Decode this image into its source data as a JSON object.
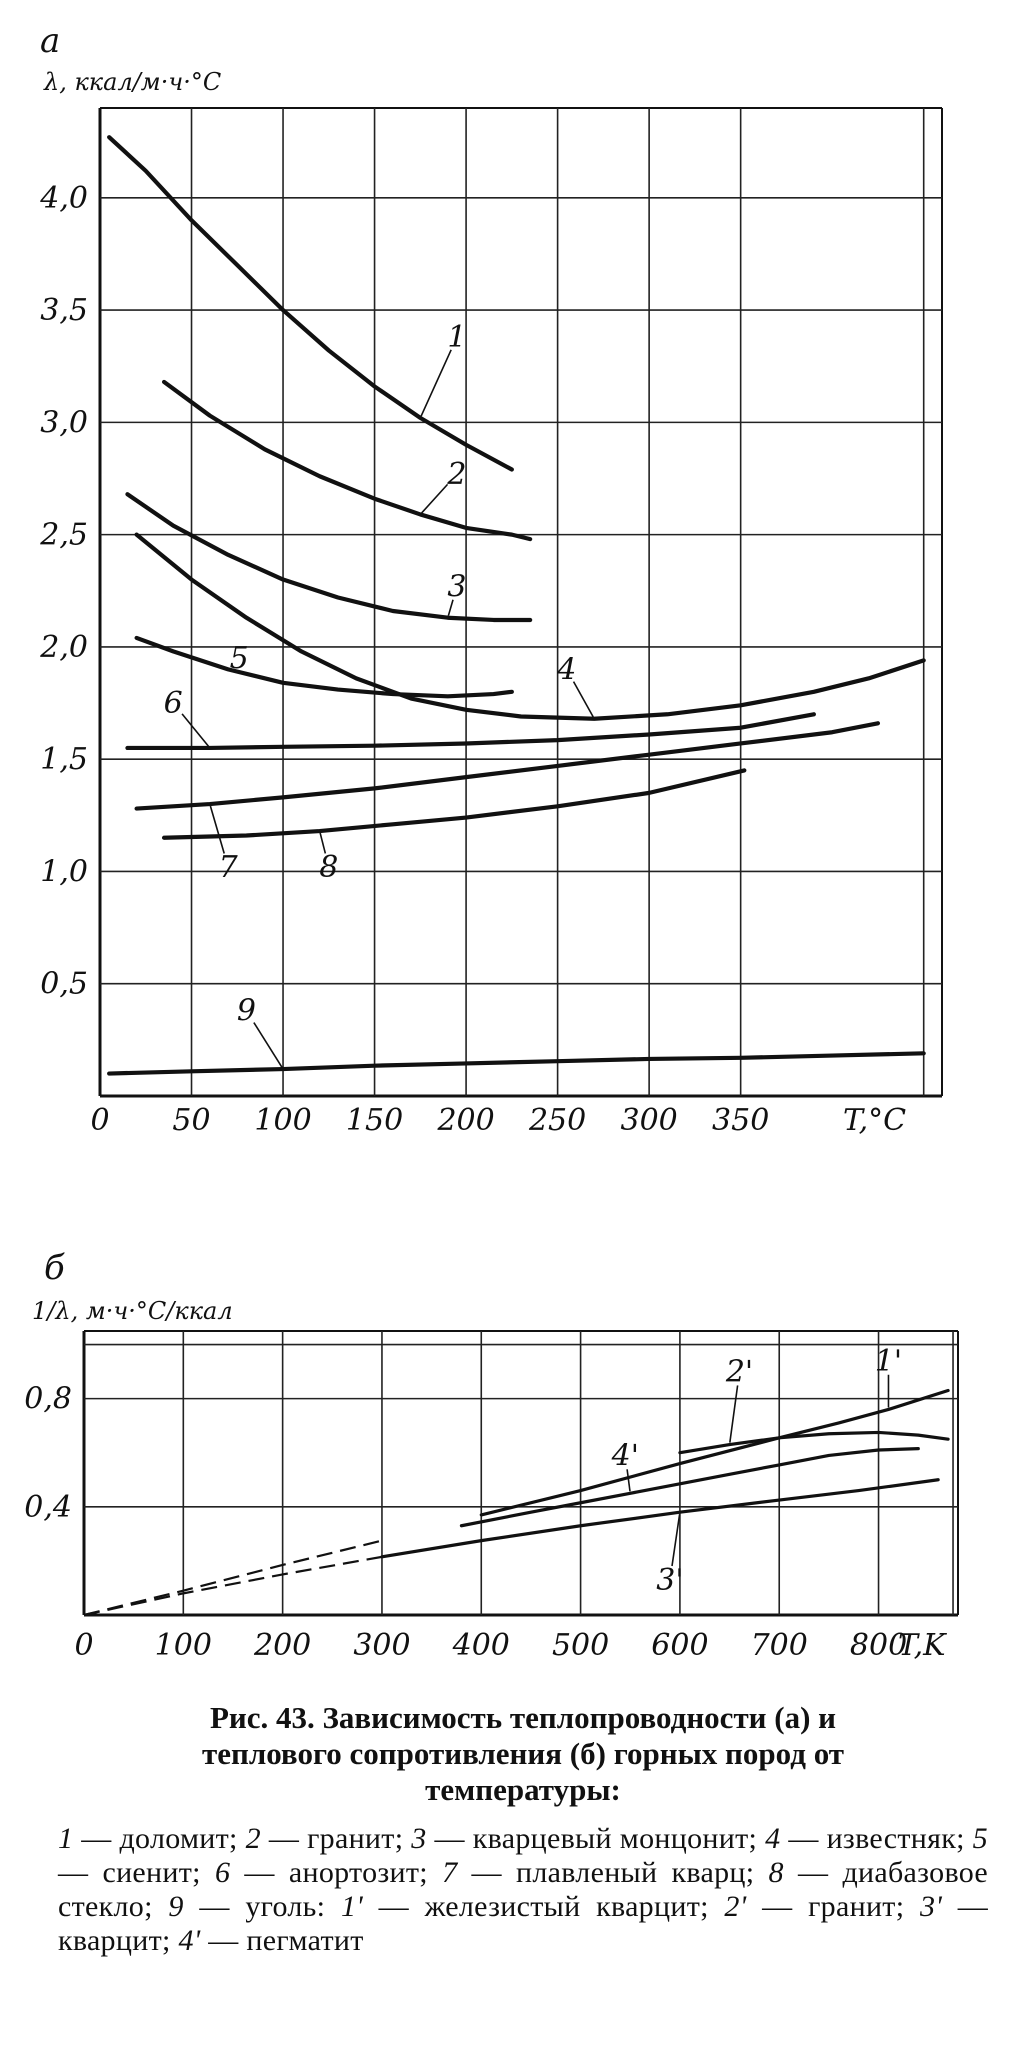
{
  "chart_data": [
    {
      "type": "line",
      "panel_letter": "a",
      "ylabel": "λ, ккал/м·ч·°C",
      "xlabel": "T,°C",
      "xlim": [
        0,
        460
      ],
      "ylim": [
        0,
        4.4
      ],
      "x_ticks": [
        "0",
        "50",
        "100",
        "150",
        "200",
        "250",
        "300",
        "350"
      ],
      "y_ticks": [
        {
          "v": 0.5,
          "label": "0,5"
        },
        {
          "v": 1.0,
          "label": "1,0"
        },
        {
          "v": 1.5,
          "label": "1,5"
        },
        {
          "v": 2.0,
          "label": "2,0"
        },
        {
          "v": 2.5,
          "label": "2,5"
        },
        {
          "v": 3.0,
          "label": "3,0"
        },
        {
          "v": 3.5,
          "label": "3,5"
        },
        {
          "v": 4.0,
          "label": "4,0"
        }
      ],
      "grid": true,
      "series": [
        {
          "name": "1",
          "points": [
            [
              5,
              4.27
            ],
            [
              25,
              4.12
            ],
            [
              50,
              3.9
            ],
            [
              75,
              3.7
            ],
            [
              100,
              3.5
            ],
            [
              125,
              3.32
            ],
            [
              150,
              3.16
            ],
            [
              175,
              3.02
            ],
            [
              200,
              2.9
            ],
            [
              225,
              2.79
            ]
          ],
          "label_at": [
            195,
            3.38
          ]
        },
        {
          "name": "2",
          "points": [
            [
              35,
              3.18
            ],
            [
              60,
              3.03
            ],
            [
              90,
              2.88
            ],
            [
              120,
              2.76
            ],
            [
              150,
              2.66
            ],
            [
              175,
              2.59
            ],
            [
              200,
              2.53
            ],
            [
              225,
              2.5
            ],
            [
              235,
              2.48
            ]
          ],
          "label_at": [
            195,
            2.77
          ]
        },
        {
          "name": "3",
          "points": [
            [
              15,
              2.68
            ],
            [
              40,
              2.54
            ],
            [
              70,
              2.41
            ],
            [
              100,
              2.3
            ],
            [
              130,
              2.22
            ],
            [
              160,
              2.16
            ],
            [
              190,
              2.13
            ],
            [
              215,
              2.12
            ],
            [
              235,
              2.12
            ]
          ],
          "label_at": [
            195,
            2.27
          ]
        },
        {
          "name": "4",
          "points": [
            [
              20,
              2.5
            ],
            [
              50,
              2.3
            ],
            [
              80,
              2.13
            ],
            [
              110,
              1.98
            ],
            [
              140,
              1.86
            ],
            [
              170,
              1.77
            ],
            [
              200,
              1.72
            ],
            [
              230,
              1.69
            ],
            [
              270,
              1.68
            ],
            [
              310,
              1.7
            ],
            [
              350,
              1.74
            ],
            [
              390,
              1.8
            ],
            [
              420,
              1.86
            ],
            [
              450,
              1.94
            ]
          ],
          "label_at": [
            255,
            1.9
          ]
        },
        {
          "name": "5",
          "points": [
            [
              20,
              2.04
            ],
            [
              40,
              1.98
            ],
            [
              70,
              1.9
            ],
            [
              100,
              1.84
            ],
            [
              130,
              1.81
            ],
            [
              160,
              1.79
            ],
            [
              190,
              1.78
            ],
            [
              215,
              1.79
            ],
            [
              225,
              1.8
            ]
          ],
          "label_at": [
            76,
            1.95
          ]
        },
        {
          "name": "6",
          "points": [
            [
              15,
              1.55
            ],
            [
              60,
              1.55
            ],
            [
              100,
              1.555
            ],
            [
              150,
              1.56
            ],
            [
              200,
              1.57
            ],
            [
              250,
              1.585
            ],
            [
              300,
              1.61
            ],
            [
              350,
              1.64
            ],
            [
              390,
              1.7
            ]
          ],
          "label_at": [
            40,
            1.75
          ]
        },
        {
          "name": "7",
          "points": [
            [
              20,
              1.28
            ],
            [
              60,
              1.3
            ],
            [
              100,
              1.33
            ],
            [
              150,
              1.37
            ],
            [
              200,
              1.42
            ],
            [
              250,
              1.47
            ],
            [
              300,
              1.52
            ],
            [
              350,
              1.57
            ],
            [
              400,
              1.62
            ],
            [
              425,
              1.66
            ]
          ],
          "label_at": [
            70,
            1.02
          ]
        },
        {
          "name": "8",
          "points": [
            [
              35,
              1.15
            ],
            [
              80,
              1.16
            ],
            [
              120,
              1.18
            ],
            [
              160,
              1.21
            ],
            [
              200,
              1.24
            ],
            [
              250,
              1.29
            ],
            [
              300,
              1.35
            ],
            [
              352,
              1.45
            ]
          ],
          "label_at": [
            125,
            1.02
          ]
        },
        {
          "name": "9",
          "points": [
            [
              5,
              0.1
            ],
            [
              50,
              0.11
            ],
            [
              100,
              0.12
            ],
            [
              150,
              0.135
            ],
            [
              200,
              0.145
            ],
            [
              250,
              0.155
            ],
            [
              300,
              0.165
            ],
            [
              350,
              0.17
            ],
            [
              400,
              0.18
            ],
            [
              450,
              0.19
            ]
          ],
          "label_at": [
            80,
            0.38
          ]
        }
      ]
    },
    {
      "type": "line",
      "panel_letter": "б",
      "ylabel": "1/λ, м·ч·°C/ккал",
      "xlabel": "T,K",
      "xlim": [
        0,
        880
      ],
      "ylim": [
        0,
        1.05
      ],
      "x_ticks": [
        "0",
        "100",
        "200",
        "300",
        "400",
        "500",
        "600",
        "700",
        "800"
      ],
      "y_ticks": [
        {
          "v": 0.4,
          "label": "0,4"
        },
        {
          "v": 0.8,
          "label": "0,8"
        }
      ],
      "grid": true,
      "series": [
        {
          "name": "1'",
          "dashed_to": 380,
          "points": [
            [
              0,
              0
            ],
            [
              100,
              0.09
            ],
            [
              200,
              0.185
            ],
            [
              300,
              0.275
            ],
            [
              400,
              0.37
            ],
            [
              500,
              0.46
            ],
            [
              600,
              0.56
            ],
            [
              700,
              0.655
            ],
            [
              760,
              0.71
            ],
            [
              810,
              0.76
            ],
            [
              870,
              0.83
            ]
          ],
          "label_at": [
            810,
            0.94
          ]
        },
        {
          "name": "2'",
          "dashed_to": 0,
          "points": [
            [
              600,
              0.6
            ],
            [
              650,
              0.63
            ],
            [
              700,
              0.655
            ],
            [
              750,
              0.67
            ],
            [
              800,
              0.675
            ],
            [
              840,
              0.665
            ],
            [
              870,
              0.65
            ]
          ],
          "label_at": [
            660,
            0.9
          ]
        },
        {
          "name": "3'",
          "dashed_to": 300,
          "points": [
            [
              0,
              0
            ],
            [
              100,
              0.08
            ],
            [
              200,
              0.15
            ],
            [
              300,
              0.215
            ],
            [
              400,
              0.275
            ],
            [
              500,
              0.33
            ],
            [
              600,
              0.38
            ],
            [
              700,
              0.425
            ],
            [
              780,
              0.46
            ],
            [
              860,
              0.5
            ]
          ],
          "label_at": [
            590,
            0.13
          ]
        },
        {
          "name": "4'",
          "dashed_to": 0,
          "points": [
            [
              380,
              0.33
            ],
            [
              450,
              0.38
            ],
            [
              500,
              0.415
            ],
            [
              550,
              0.45
            ],
            [
              600,
              0.485
            ],
            [
              650,
              0.52
            ],
            [
              700,
              0.555
            ],
            [
              750,
              0.59
            ],
            [
              800,
              0.61
            ],
            [
              840,
              0.615
            ]
          ],
          "label_at": [
            545,
            0.59
          ]
        }
      ]
    }
  ],
  "caption": {
    "title_line1": "Рис. 43. Зависимость теплопроводности (а) и",
    "title_line2": "теплового сопротивления (б) горных пород от",
    "title_line3": "температуры:",
    "legend": [
      {
        "num": "1",
        "name": "доломит;"
      },
      {
        "num": "2",
        "name": "гранит;"
      },
      {
        "num": "3",
        "name": "кварцевый монцонит;"
      },
      {
        "num": "4",
        "name": "известняк;"
      },
      {
        "num": "5",
        "name": "сиенит;"
      },
      {
        "num": "6",
        "name": "анортозит;"
      },
      {
        "num": "7",
        "name": "плавленый кварц;"
      },
      {
        "num": "8",
        "name": "диабазовое стекло;"
      },
      {
        "num": "9",
        "name": "уголь:"
      },
      {
        "num": "1'",
        "name": "железистый кварцит;"
      },
      {
        "num": "2'",
        "name": "гранит;"
      },
      {
        "num": "3'",
        "name": "кварцит;"
      },
      {
        "num": "4'",
        "name": "пегматит"
      }
    ]
  }
}
